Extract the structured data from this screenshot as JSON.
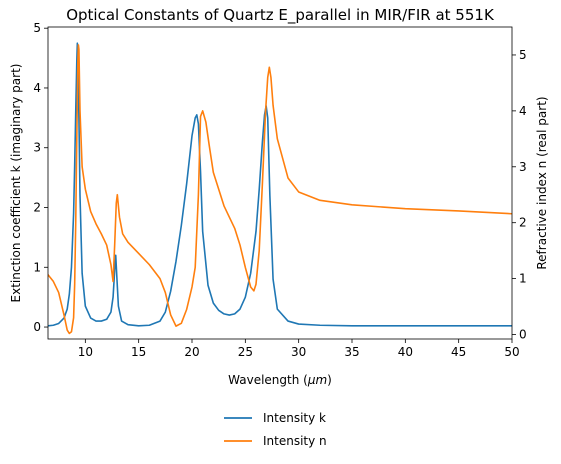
{
  "chart_data": {
    "type": "line",
    "title": "Optical Constants of Quartz E_parallel in MIR/FIR at 551K",
    "xlabel": "Wavelength (μm)",
    "ylabel_left": "Extinction coefficient k (imaginary part)",
    "ylabel_right": "Refractive index n (real part)",
    "xlim": [
      6.5,
      50
    ],
    "ylim_left": [
      -0.2,
      5.02
    ],
    "ylim_right": [
      -0.08,
      5.5
    ],
    "xticks": [
      10,
      15,
      20,
      25,
      30,
      35,
      40,
      45,
      50
    ],
    "yticks_left": [
      0,
      1,
      2,
      3,
      4,
      5
    ],
    "yticks_right": [
      0,
      1,
      2,
      3,
      4,
      5
    ],
    "grid": false,
    "legend_position": "bottom-center-below",
    "series": [
      {
        "name": "Intensity k",
        "axis": "left",
        "color": "#1f77b4",
        "x": [
          6.5,
          7.0,
          7.5,
          8.0,
          8.3,
          8.5,
          8.7,
          8.9,
          9.0,
          9.1,
          9.2,
          9.25,
          9.3,
          9.4,
          9.5,
          9.7,
          10.0,
          10.5,
          11.0,
          11.5,
          12.0,
          12.4,
          12.6,
          12.75,
          12.85,
          12.95,
          13.1,
          13.4,
          14.0,
          15.0,
          16.0,
          17.0,
          17.5,
          18.0,
          18.5,
          19.0,
          19.5,
          20.0,
          20.3,
          20.45,
          20.6,
          20.8,
          21.0,
          21.5,
          22.0,
          22.5,
          23.0,
          23.5,
          24.0,
          24.5,
          25.0,
          25.5,
          26.0,
          26.3,
          26.6,
          26.8,
          26.95,
          27.1,
          27.3,
          27.6,
          28.0,
          29.0,
          30.0,
          32.0,
          35.0,
          40.0,
          45.0,
          50.0
        ],
        "values": [
          0.02,
          0.03,
          0.06,
          0.15,
          0.3,
          0.55,
          1.0,
          1.9,
          2.7,
          3.6,
          4.45,
          4.75,
          4.6,
          3.5,
          2.2,
          0.9,
          0.35,
          0.15,
          0.1,
          0.1,
          0.13,
          0.25,
          0.5,
          0.95,
          1.2,
          0.85,
          0.35,
          0.1,
          0.04,
          0.02,
          0.03,
          0.1,
          0.25,
          0.6,
          1.1,
          1.7,
          2.4,
          3.2,
          3.5,
          3.55,
          3.4,
          2.6,
          1.6,
          0.7,
          0.4,
          0.28,
          0.22,
          0.2,
          0.22,
          0.3,
          0.5,
          0.9,
          1.6,
          2.3,
          3.1,
          3.55,
          3.7,
          3.5,
          2.2,
          0.8,
          0.3,
          0.1,
          0.05,
          0.03,
          0.02,
          0.02,
          0.02,
          0.02
        ]
      },
      {
        "name": "Intensity n",
        "axis": "right",
        "color": "#ff7f0e",
        "x": [
          6.5,
          7.0,
          7.5,
          8.0,
          8.3,
          8.5,
          8.7,
          8.9,
          9.0,
          9.1,
          9.2,
          9.3,
          9.35,
          9.4,
          9.5,
          9.7,
          10.0,
          10.5,
          11.0,
          11.5,
          12.0,
          12.4,
          12.6,
          12.75,
          12.9,
          13.0,
          13.2,
          13.5,
          14.0,
          15.0,
          16.0,
          17.0,
          17.5,
          18.0,
          18.5,
          19.0,
          19.5,
          20.0,
          20.3,
          20.6,
          20.8,
          21.0,
          21.3,
          21.6,
          22.0,
          23.0,
          24.0,
          24.5,
          25.0,
          25.5,
          25.8,
          26.0,
          26.3,
          26.6,
          26.9,
          27.1,
          27.25,
          27.4,
          27.6,
          28.0,
          29.0,
          30.0,
          32.0,
          35.0,
          40.0,
          45.0,
          50.0
        ],
        "values": [
          1.07,
          0.95,
          0.75,
          0.35,
          0.08,
          0.02,
          0.05,
          0.3,
          0.9,
          2.0,
          3.5,
          4.9,
          5.18,
          5.1,
          4.0,
          3.0,
          2.6,
          2.2,
          1.98,
          1.8,
          1.6,
          1.25,
          0.95,
          1.6,
          2.35,
          2.5,
          2.1,
          1.8,
          1.65,
          1.45,
          1.25,
          1.0,
          0.75,
          0.35,
          0.15,
          0.2,
          0.45,
          0.85,
          1.2,
          2.5,
          3.9,
          4.0,
          3.8,
          3.4,
          2.9,
          2.3,
          1.9,
          1.6,
          1.2,
          0.85,
          0.78,
          0.9,
          1.5,
          2.7,
          4.0,
          4.6,
          4.78,
          4.6,
          4.1,
          3.5,
          2.8,
          2.55,
          2.4,
          2.32,
          2.25,
          2.21,
          2.16
        ]
      }
    ]
  }
}
